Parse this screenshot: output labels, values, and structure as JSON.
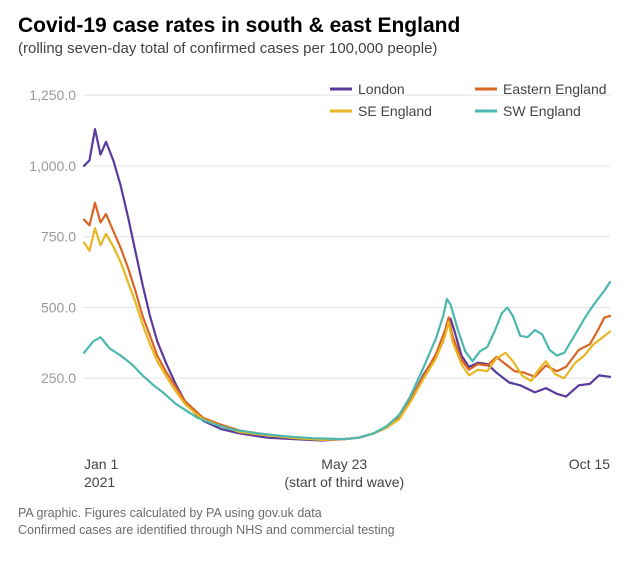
{
  "title": "Covid-19 case rates in south & east England",
  "subtitle": "(rolling seven-day total of confirmed cases per 100,000 people)",
  "credits_line1": "PA graphic. Figures calculated by PA using gov.uk data",
  "credits_line2": "Confirmed cases are identified through NHS and commercial testing",
  "chart": {
    "type": "line",
    "background_color": "#ffffff",
    "grid_color": "#e2e2e2",
    "axis_label_color": "#444444",
    "ytick_color": "#9a9a9a",
    "line_width": 2.2,
    "ylim": [
      0,
      1300
    ],
    "yticks": [
      250.0,
      500.0,
      750.0,
      1000.0,
      1250.0
    ],
    "ytick_labels": [
      "250.0",
      "500.0",
      "750.0",
      "1,000.0",
      "1,250.0"
    ],
    "xlim": [
      0,
      287
    ],
    "xticks": [
      {
        "pos": 0,
        "line1": "Jan 1",
        "line2": "2021"
      },
      {
        "pos": 142,
        "line1": "May 23",
        "line2": "(start of third wave)"
      },
      {
        "pos": 287,
        "line1": "Oct 15",
        "line2": ""
      }
    ],
    "legend": {
      "position": "top-right",
      "items": [
        {
          "label": "London",
          "color": "#5a3a9c"
        },
        {
          "label": "Eastern England",
          "color": "#d96524"
        },
        {
          "label": "SE England",
          "color": "#e8b723"
        },
        {
          "label": "SW England",
          "color": "#4cb8ae"
        }
      ]
    },
    "series": [
      {
        "name": "London",
        "color": "#5a3a9c",
        "points": [
          [
            0,
            1000
          ],
          [
            3,
            1020
          ],
          [
            6,
            1130
          ],
          [
            9,
            1040
          ],
          [
            12,
            1085
          ],
          [
            16,
            1020
          ],
          [
            20,
            930
          ],
          [
            24,
            820
          ],
          [
            28,
            700
          ],
          [
            32,
            580
          ],
          [
            36,
            470
          ],
          [
            40,
            380
          ],
          [
            45,
            300
          ],
          [
            50,
            230
          ],
          [
            55,
            170
          ],
          [
            60,
            130
          ],
          [
            65,
            100
          ],
          [
            75,
            70
          ],
          [
            85,
            55
          ],
          [
            100,
            40
          ],
          [
            115,
            35
          ],
          [
            130,
            30
          ],
          [
            142,
            35
          ],
          [
            150,
            40
          ],
          [
            158,
            55
          ],
          [
            165,
            75
          ],
          [
            172,
            110
          ],
          [
            178,
            170
          ],
          [
            185,
            260
          ],
          [
            192,
            330
          ],
          [
            196,
            380
          ],
          [
            198,
            445
          ],
          [
            200,
            460
          ],
          [
            202,
            420
          ],
          [
            206,
            330
          ],
          [
            210,
            290
          ],
          [
            215,
            305
          ],
          [
            220,
            300
          ],
          [
            225,
            270
          ],
          [
            232,
            235
          ],
          [
            238,
            225
          ],
          [
            246,
            200
          ],
          [
            252,
            215
          ],
          [
            258,
            195
          ],
          [
            263,
            185
          ],
          [
            270,
            225
          ],
          [
            276,
            230
          ],
          [
            281,
            260
          ],
          [
            287,
            255
          ]
        ]
      },
      {
        "name": "Eastern England",
        "color": "#d96524",
        "points": [
          [
            0,
            810
          ],
          [
            3,
            790
          ],
          [
            6,
            870
          ],
          [
            9,
            800
          ],
          [
            12,
            830
          ],
          [
            16,
            770
          ],
          [
            20,
            710
          ],
          [
            24,
            640
          ],
          [
            28,
            560
          ],
          [
            32,
            470
          ],
          [
            36,
            400
          ],
          [
            40,
            330
          ],
          [
            45,
            270
          ],
          [
            50,
            220
          ],
          [
            55,
            170
          ],
          [
            60,
            140
          ],
          [
            65,
            110
          ],
          [
            75,
            85
          ],
          [
            85,
            65
          ],
          [
            100,
            50
          ],
          [
            115,
            40
          ],
          [
            130,
            35
          ],
          [
            142,
            35
          ],
          [
            150,
            40
          ],
          [
            158,
            55
          ],
          [
            165,
            75
          ],
          [
            172,
            110
          ],
          [
            178,
            170
          ],
          [
            185,
            255
          ],
          [
            192,
            335
          ],
          [
            197,
            420
          ],
          [
            199,
            465
          ],
          [
            201,
            400
          ],
          [
            206,
            315
          ],
          [
            210,
            280
          ],
          [
            215,
            300
          ],
          [
            220,
            295
          ],
          [
            225,
            325
          ],
          [
            230,
            300
          ],
          [
            235,
            275
          ],
          [
            240,
            270
          ],
          [
            246,
            255
          ],
          [
            252,
            295
          ],
          [
            258,
            275
          ],
          [
            263,
            290
          ],
          [
            270,
            350
          ],
          [
            276,
            370
          ],
          [
            280,
            415
          ],
          [
            284,
            465
          ],
          [
            287,
            470
          ]
        ]
      },
      {
        "name": "SE England",
        "color": "#e8b723",
        "points": [
          [
            0,
            730
          ],
          [
            3,
            700
          ],
          [
            6,
            780
          ],
          [
            9,
            720
          ],
          [
            12,
            760
          ],
          [
            16,
            715
          ],
          [
            20,
            660
          ],
          [
            24,
            590
          ],
          [
            28,
            520
          ],
          [
            32,
            440
          ],
          [
            36,
            370
          ],
          [
            40,
            310
          ],
          [
            45,
            255
          ],
          [
            50,
            205
          ],
          [
            55,
            160
          ],
          [
            60,
            130
          ],
          [
            65,
            105
          ],
          [
            75,
            80
          ],
          [
            85,
            60
          ],
          [
            100,
            48
          ],
          [
            115,
            38
          ],
          [
            130,
            32
          ],
          [
            142,
            35
          ],
          [
            150,
            40
          ],
          [
            158,
            55
          ],
          [
            165,
            75
          ],
          [
            172,
            105
          ],
          [
            178,
            165
          ],
          [
            185,
            245
          ],
          [
            192,
            320
          ],
          [
            197,
            400
          ],
          [
            199,
            450
          ],
          [
            201,
            380
          ],
          [
            206,
            300
          ],
          [
            210,
            260
          ],
          [
            215,
            280
          ],
          [
            220,
            275
          ],
          [
            225,
            320
          ],
          [
            230,
            340
          ],
          [
            234,
            310
          ],
          [
            239,
            260
          ],
          [
            244,
            240
          ],
          [
            248,
            280
          ],
          [
            252,
            310
          ],
          [
            257,
            265
          ],
          [
            262,
            250
          ],
          [
            268,
            305
          ],
          [
            273,
            330
          ],
          [
            278,
            370
          ],
          [
            283,
            395
          ],
          [
            287,
            415
          ]
        ]
      },
      {
        "name": "SW England",
        "color": "#4cb8ae",
        "points": [
          [
            0,
            340
          ],
          [
            5,
            380
          ],
          [
            9,
            395
          ],
          [
            14,
            355
          ],
          [
            20,
            330
          ],
          [
            26,
            300
          ],
          [
            32,
            260
          ],
          [
            38,
            225
          ],
          [
            44,
            195
          ],
          [
            50,
            160
          ],
          [
            56,
            135
          ],
          [
            62,
            110
          ],
          [
            70,
            90
          ],
          [
            80,
            70
          ],
          [
            95,
            55
          ],
          [
            110,
            45
          ],
          [
            125,
            38
          ],
          [
            142,
            35
          ],
          [
            150,
            40
          ],
          [
            158,
            55
          ],
          [
            165,
            80
          ],
          [
            172,
            120
          ],
          [
            178,
            185
          ],
          [
            185,
            285
          ],
          [
            192,
            390
          ],
          [
            196,
            470
          ],
          [
            198,
            530
          ],
          [
            200,
            510
          ],
          [
            204,
            420
          ],
          [
            208,
            345
          ],
          [
            212,
            310
          ],
          [
            216,
            345
          ],
          [
            220,
            360
          ],
          [
            224,
            415
          ],
          [
            228,
            480
          ],
          [
            231,
            500
          ],
          [
            234,
            470
          ],
          [
            238,
            400
          ],
          [
            242,
            395
          ],
          [
            246,
            420
          ],
          [
            250,
            405
          ],
          [
            254,
            350
          ],
          [
            258,
            330
          ],
          [
            262,
            340
          ],
          [
            268,
            405
          ],
          [
            273,
            460
          ],
          [
            277,
            500
          ],
          [
            281,
            535
          ],
          [
            284,
            560
          ],
          [
            287,
            590
          ]
        ]
      }
    ]
  }
}
